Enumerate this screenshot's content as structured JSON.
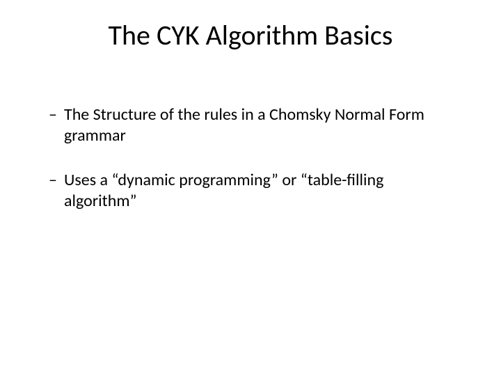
{
  "slide": {
    "title": "The CYK Algorithm Basics",
    "bullets": [
      {
        "dash": "–",
        "text": "The Structure of the rules in a Chomsky Normal Form grammar"
      },
      {
        "dash": "–",
        "text": "Uses a “dynamic programming” or “table-filling algorithm”"
      }
    ],
    "colors": {
      "background": "#ffffff",
      "text": "#000000"
    },
    "typography": {
      "title_fontsize": 40,
      "body_fontsize": 24,
      "font_family": "Calibri"
    }
  }
}
